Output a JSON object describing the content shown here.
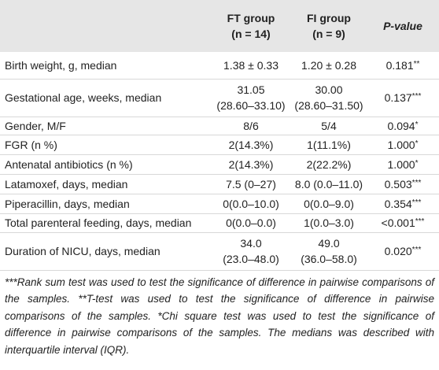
{
  "table": {
    "header": {
      "ft": [
        "FT group",
        "(n = 14)"
      ],
      "fi": [
        "FI group",
        "(n = 9)"
      ],
      "p": "P-value"
    },
    "rows": [
      {
        "label": "Birth weight, g, median",
        "ft": [
          "1.38 ± 0.33"
        ],
        "fi": [
          "1.20 ± 0.28"
        ],
        "p": "0.181",
        "mark": "**"
      },
      {
        "label": "Gestational age, weeks, median",
        "ft": [
          "31.05",
          "(28.60–33.10)"
        ],
        "fi": [
          "30.00",
          "(28.60–31.50)"
        ],
        "p": "0.137",
        "mark": "***"
      },
      {
        "label": "Gender, M/F",
        "ft": [
          "8/6"
        ],
        "fi": [
          "5/4"
        ],
        "p": "0.094",
        "mark": "*"
      },
      {
        "label": "FGR (n %)",
        "ft": [
          "2(14.3%)"
        ],
        "fi": [
          "1(11.1%)"
        ],
        "p": "1.000",
        "mark": "*"
      },
      {
        "label": "Antenatal antibiotics (n %)",
        "ft": [
          "2(14.3%)"
        ],
        "fi": [
          "2(22.2%)"
        ],
        "p": "1.000",
        "mark": "*"
      },
      {
        "label": "Latamoxef, days, median",
        "ft": [
          "7.5 (0–27)"
        ],
        "fi": [
          "8.0 (0.0–11.0)"
        ],
        "p": "0.503",
        "mark": "***"
      },
      {
        "label": "Piperacillin, days, median",
        "ft": [
          "0(0.0–10.0)"
        ],
        "fi": [
          "0(0.0–9.0)"
        ],
        "p": "0.354",
        "mark": "***"
      },
      {
        "label": "Total parenteral feeding, days, median",
        "ft": [
          "0(0.0–0.0)"
        ],
        "fi": [
          "1(0.0–3.0)"
        ],
        "p": "<0.001",
        "mark": "***"
      },
      {
        "label": "Duration of NICU, days, median",
        "ft": [
          "34.0",
          "(23.0–48.0)"
        ],
        "fi": [
          "49.0",
          "(36.0–58.0)"
        ],
        "p": "0.020",
        "mark": "***"
      }
    ],
    "footnote": "***Rank sum test was used to test the significance of difference in pairwise comparisons of the samples. **T-test was used to test the significance of difference in pairwise comparisons of the samples. *Chi square test was used to test the significance of difference in pairwise comparisons of the samples. The medians was described with interquartile interval (IQR)."
  }
}
